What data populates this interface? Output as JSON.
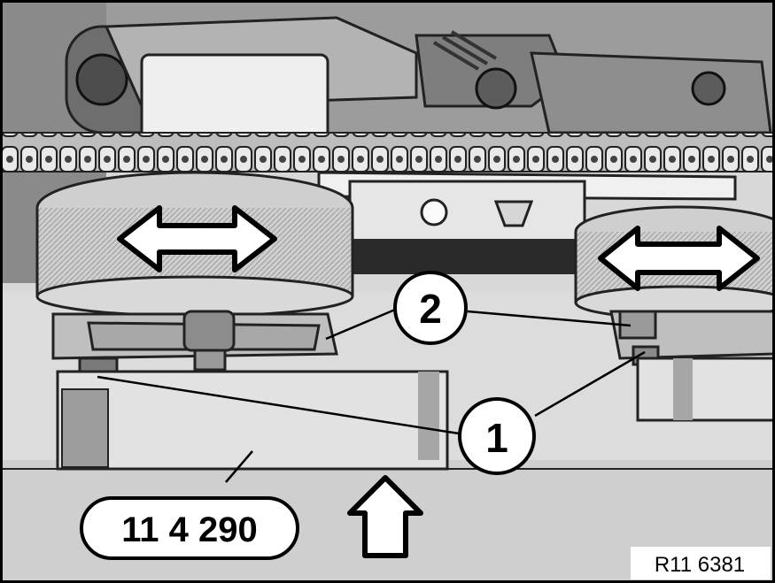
{
  "callouts": {
    "one": "1",
    "two": "2"
  },
  "tool_label": "11 4 290",
  "figure_code": "R11 6381",
  "icons": {
    "double_arrow_left": "double-arrow-icon",
    "double_arrow_right": "double-arrow-icon",
    "up_arrow": "up-arrow-icon"
  }
}
